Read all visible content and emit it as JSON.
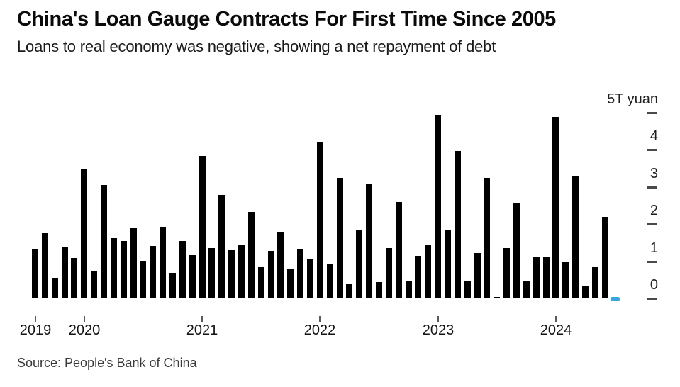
{
  "header": {
    "title": "China's Loan Gauge Contracts For First Time Since 2005",
    "subtitle": "Loans to real economy was negative, showing a net repayment of debt"
  },
  "source": "Source: People's Bank of China",
  "colors": {
    "bar": "#000000",
    "negative_bar": "#38a5dc",
    "axis_text": "#1f1f1f",
    "tick_mark": "#4a4a4a"
  },
  "y_axis": {
    "unit_label": "5T yuan",
    "ticks": [
      {
        "label": "5T yuan",
        "value": 5
      },
      {
        "label": "4",
        "value": 4
      },
      {
        "label": "3",
        "value": 3
      },
      {
        "label": "2",
        "value": 2
      },
      {
        "label": "1",
        "value": 1
      },
      {
        "label": "0",
        "value": 0
      }
    ]
  },
  "x_axis": {
    "year_ticks": [
      {
        "label": "2019",
        "month_index": 0
      },
      {
        "label": "2020",
        "month_index": 5
      },
      {
        "label": "2021",
        "month_index": 17
      },
      {
        "label": "2022",
        "month_index": 29
      },
      {
        "label": "2023",
        "month_index": 41
      },
      {
        "label": "2024",
        "month_index": 53
      }
    ]
  },
  "chart_data": {
    "type": "bar",
    "title": "China's Loan Gauge Contracts For First Time Since 2005",
    "subtitle": "Loans to real economy was negative, showing a net repayment of debt",
    "ylabel": "T yuan",
    "ylim": [
      -0.3,
      5
    ],
    "grid": false,
    "legend_position": "none",
    "axis_side": "right",
    "frequency": "monthly",
    "x": [
      "2019-08",
      "2019-09",
      "2019-10",
      "2019-11",
      "2019-12",
      "2020-01",
      "2020-02",
      "2020-03",
      "2020-04",
      "2020-05",
      "2020-06",
      "2020-07",
      "2020-08",
      "2020-09",
      "2020-10",
      "2020-11",
      "2020-12",
      "2021-01",
      "2021-02",
      "2021-03",
      "2021-04",
      "2021-05",
      "2021-06",
      "2021-07",
      "2021-08",
      "2021-09",
      "2021-10",
      "2021-11",
      "2021-12",
      "2022-01",
      "2022-02",
      "2022-03",
      "2022-04",
      "2022-05",
      "2022-06",
      "2022-07",
      "2022-08",
      "2022-09",
      "2022-10",
      "2022-11",
      "2022-12",
      "2023-01",
      "2023-02",
      "2023-03",
      "2023-04",
      "2023-05",
      "2023-06",
      "2023-07",
      "2023-08",
      "2023-09",
      "2023-10",
      "2023-11",
      "2023-12",
      "2024-01",
      "2024-02",
      "2024-03",
      "2024-04",
      "2024-05",
      "2024-06",
      "2024-07"
    ],
    "values": [
      1.31,
      1.76,
      0.56,
      1.37,
      1.08,
      3.5,
      0.72,
      3.05,
      1.63,
      1.55,
      1.9,
      1.02,
      1.42,
      1.93,
      0.69,
      1.55,
      1.16,
      3.83,
      1.36,
      2.78,
      1.3,
      1.45,
      2.32,
      0.84,
      1.28,
      1.8,
      0.79,
      1.32,
      1.05,
      4.2,
      0.92,
      3.25,
      0.4,
      1.84,
      3.07,
      0.43,
      1.36,
      2.6,
      0.45,
      1.15,
      1.45,
      4.95,
      1.83,
      3.96,
      0.45,
      1.23,
      3.24,
      0.04,
      1.36,
      2.55,
      0.48,
      1.12,
      1.11,
      4.88,
      1.0,
      3.3,
      0.35,
      0.84,
      2.2,
      -0.08
    ],
    "highlight": {
      "index": 59,
      "reason": "negative value shown in blue"
    }
  }
}
